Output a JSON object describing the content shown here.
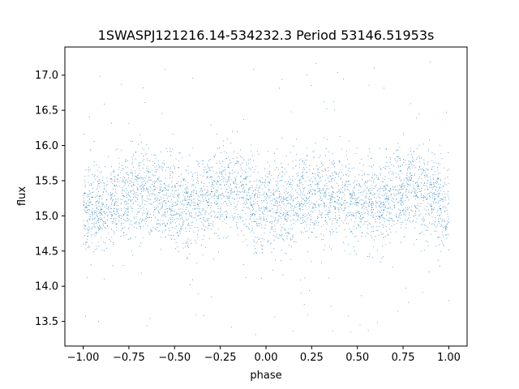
{
  "chart_data": {
    "type": "scatter",
    "title": "1SWASPJ121216.14-534232.3 Period 53146.51953s",
    "xlabel": "phase",
    "ylabel": "flux",
    "xlim": [
      -1.1,
      1.1
    ],
    "ylim": [
      13.15,
      17.4
    ],
    "xticks": [
      -1.0,
      -0.75,
      -0.5,
      -0.25,
      0.0,
      0.25,
      0.5,
      0.75,
      1.0
    ],
    "xtick_labels": [
      "−1.00",
      "−0.75",
      "−0.50",
      "−0.25",
      "0.00",
      "0.25",
      "0.50",
      "0.75",
      "1.00"
    ],
    "yticks": [
      13.5,
      14.0,
      14.5,
      15.0,
      15.5,
      16.0,
      16.5,
      17.0
    ],
    "ytick_labels": [
      "13.5",
      "14.0",
      "14.5",
      "15.0",
      "15.5",
      "16.0",
      "16.5",
      "17.0"
    ],
    "grid": false,
    "legend": "none",
    "marker_color": "#1f77b4",
    "series": [
      {
        "phase_range": [
          -1.0,
          1.0
        ],
        "approx_point_count": 22000,
        "trend": {
          "phase": [
            -1.0,
            -0.9,
            -0.8,
            -0.7,
            -0.6,
            -0.5,
            -0.4,
            -0.3,
            -0.2,
            -0.1,
            0.0,
            0.1,
            0.2,
            0.3,
            0.4,
            0.5,
            0.6,
            0.7,
            0.8,
            0.9,
            1.0
          ],
          "flux": [
            15.05,
            15.1,
            15.25,
            15.35,
            15.3,
            15.15,
            15.15,
            15.3,
            15.4,
            15.3,
            15.05,
            15.1,
            15.25,
            15.35,
            15.3,
            15.15,
            15.15,
            15.3,
            15.4,
            15.3,
            15.05
          ]
        },
        "scatter_sd": 0.3,
        "flux_range": [
          13.3,
          17.2
        ]
      }
    ]
  }
}
